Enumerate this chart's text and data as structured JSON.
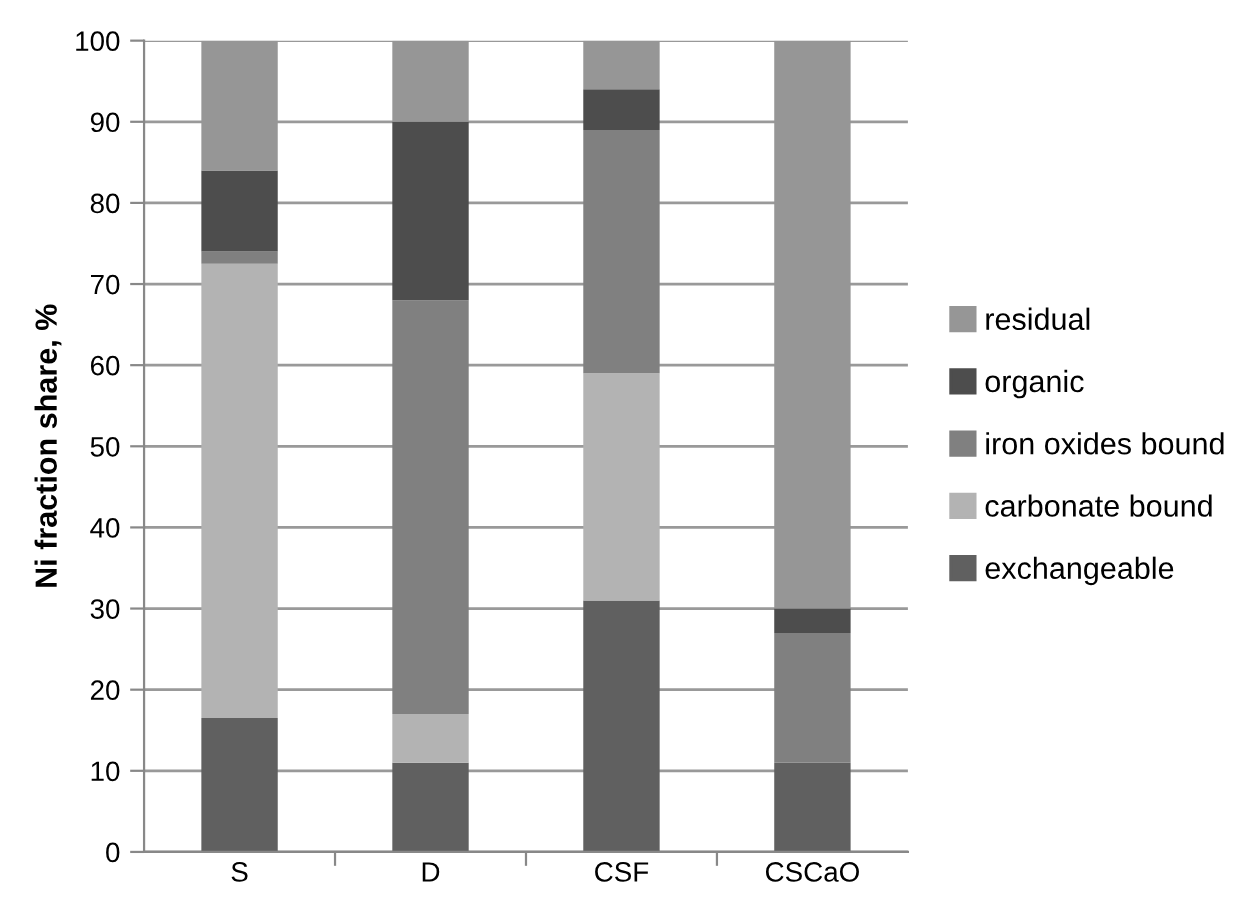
{
  "chart_data": {
    "type": "bar",
    "stacked": true,
    "ylabel": "Ni fraction share, %",
    "categories": [
      "S",
      "D",
      "CSF",
      "CSCaO"
    ],
    "series": [
      {
        "name": "exchangeable",
        "color": "#606060",
        "values": [
          16.5,
          11,
          31,
          11
        ]
      },
      {
        "name": "carbonate bound",
        "color": "#b3b3b3",
        "values": [
          56,
          6,
          28,
          0
        ]
      },
      {
        "name": "iron oxides bound",
        "color": "#808080",
        "values": [
          1.5,
          51,
          30,
          16
        ]
      },
      {
        "name": "organic",
        "color": "#4d4d4d",
        "values": [
          10,
          22,
          5,
          3
        ]
      },
      {
        "name": "residual",
        "color": "#969696",
        "values": [
          16,
          10,
          6,
          70
        ]
      }
    ],
    "ylim": [
      0,
      100
    ],
    "yticks": [
      0,
      10,
      20,
      30,
      40,
      50,
      60,
      70,
      80,
      90,
      100
    ],
    "grid": "y",
    "legend": "right"
  }
}
